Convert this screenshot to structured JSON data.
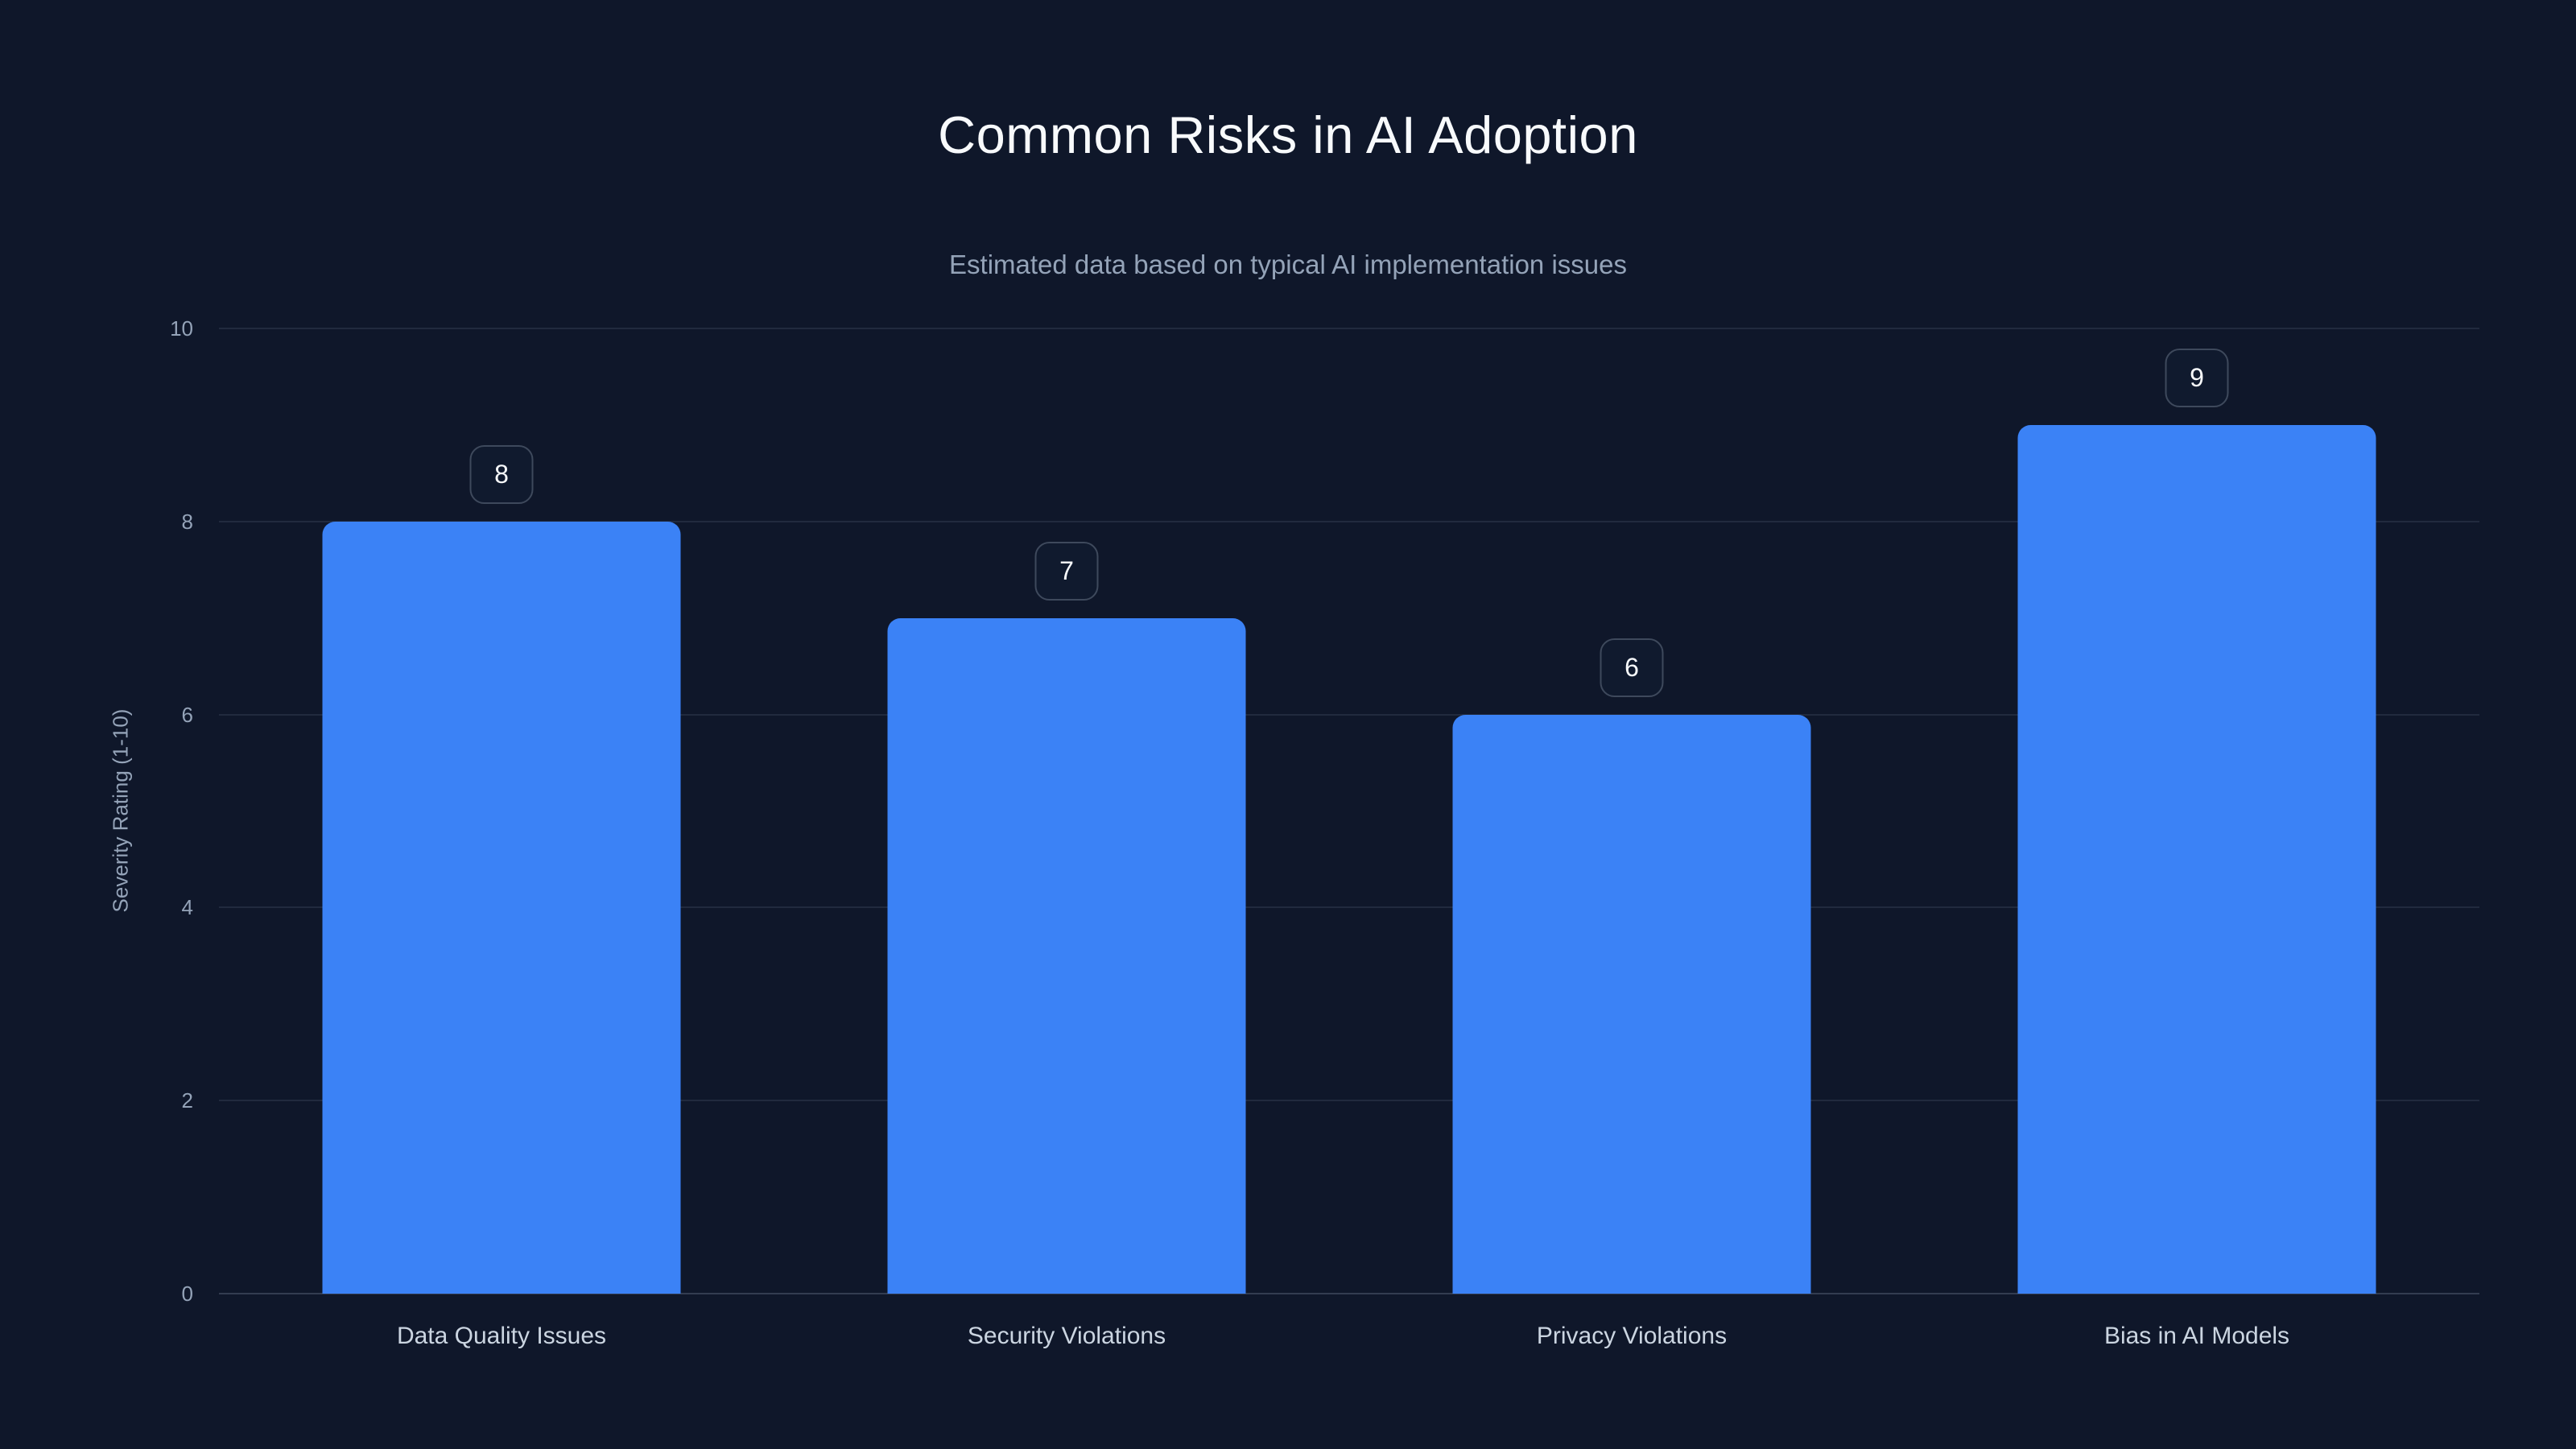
{
  "page": {
    "background_color": "#0f172a"
  },
  "chart_data": {
    "type": "bar",
    "title": "Common Risks in AI Adoption",
    "subtitle": "Estimated data based on typical AI implementation issues",
    "categories": [
      "Data Quality Issues",
      "Security Violations",
      "Privacy Violations",
      "Bias in AI Models"
    ],
    "values": [
      8,
      7,
      6,
      9
    ],
    "xlabel": "",
    "ylabel": "Severity Rating (1-10)",
    "yticks": [
      0,
      2,
      4,
      6,
      8,
      10
    ],
    "ylim": [
      0,
      10
    ],
    "grid": true,
    "legend": false,
    "value_labels_shown": true,
    "bar_color": "#3b82f6",
    "title_color": "#f8fafc",
    "subtitle_color": "#94a3b8",
    "tick_color": "#94a3b8",
    "category_label_color": "#cbd5e1",
    "gridline_color": "#94a3b824"
  }
}
